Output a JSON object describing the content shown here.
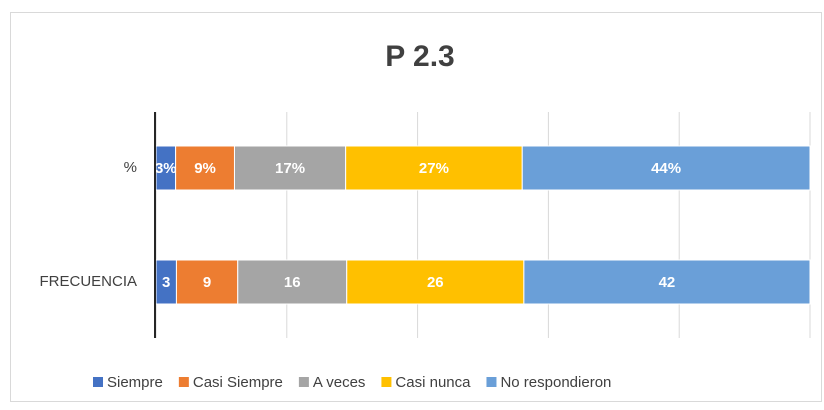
{
  "chart_data": {
    "type": "bar",
    "orientation": "horizontal",
    "stack": "percent",
    "title": "P 2.3",
    "categories": [
      "%",
      "FRECUENCIA"
    ],
    "series": [
      {
        "name": "Siempre",
        "color": "#4472c4",
        "values": [
          3,
          3
        ],
        "value_labels": [
          "3%",
          "3"
        ]
      },
      {
        "name": "Casi Siempre",
        "color": "#ed7d31",
        "values": [
          9,
          9
        ],
        "value_labels": [
          "9%",
          "9"
        ]
      },
      {
        "name": "A veces",
        "color": "#a5a5a5",
        "values": [
          17,
          16
        ],
        "value_labels": [
          "17%",
          "16"
        ]
      },
      {
        "name": "Casi nunca",
        "color": "#ffc000",
        "values": [
          27,
          26
        ],
        "value_labels": [
          "27%",
          "26"
        ]
      },
      {
        "name": "No respondieron",
        "color": "#6a9fd8",
        "values": [
          44,
          42
        ],
        "value_labels": [
          "44%",
          "42"
        ]
      }
    ],
    "xlim": [
      0,
      100
    ],
    "xticks": [
      0,
      20,
      40,
      60,
      80,
      100
    ],
    "grid": true,
    "legend": "bottom"
  }
}
